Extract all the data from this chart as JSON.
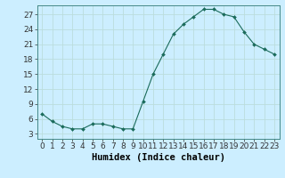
{
  "x": [
    0,
    1,
    2,
    3,
    4,
    5,
    6,
    7,
    8,
    9,
    10,
    11,
    12,
    13,
    14,
    15,
    16,
    17,
    18,
    19,
    20,
    21,
    22,
    23
  ],
  "y": [
    7,
    5.5,
    4.5,
    4,
    4,
    5,
    5,
    4.5,
    4,
    4,
    9.5,
    15,
    19,
    23,
    25,
    26.5,
    28,
    28,
    27,
    26.5,
    23.5,
    21,
    20,
    19
  ],
  "line_color": "#1a6b5a",
  "marker_color": "#1a6b5a",
  "bg_color": "#cceeff",
  "grid_color": "#bbdddd",
  "xlabel": "Humidex (Indice chaleur)",
  "xlim": [
    -0.5,
    23.5
  ],
  "ylim": [
    2,
    28.8
  ],
  "yticks": [
    3,
    6,
    9,
    12,
    15,
    18,
    21,
    24,
    27
  ],
  "xticks": [
    0,
    1,
    2,
    3,
    4,
    5,
    6,
    7,
    8,
    9,
    10,
    11,
    12,
    13,
    14,
    15,
    16,
    17,
    18,
    19,
    20,
    21,
    22,
    23
  ],
  "tick_fontsize": 6.5,
  "xlabel_fontsize": 7.5
}
